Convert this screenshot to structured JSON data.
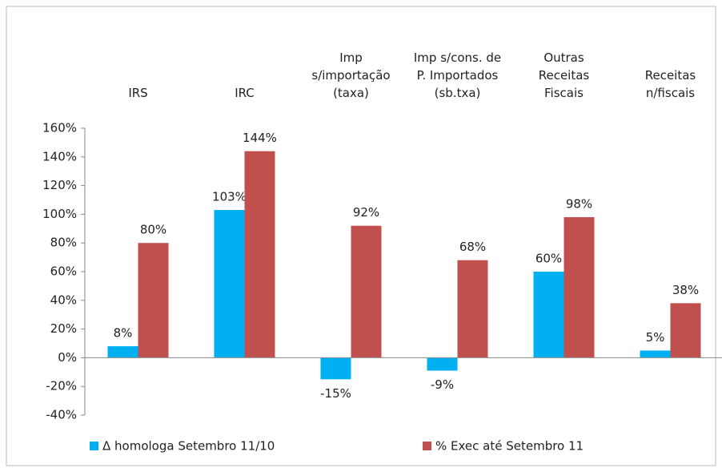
{
  "chart_data": {
    "type": "bar",
    "categories": [
      "IRS",
      "IRC",
      "Imp\ns/importação\n(taxa)",
      "Imp s/cons. de\nP. Importados\n(sb.txa)",
      "Outras\nReceitas\nFiscais",
      "Receitas\nn/fiscais"
    ],
    "series": [
      {
        "name": "Δ homologa Setembro 11/10",
        "color": "#00b0f0",
        "values": [
          8,
          103,
          -15,
          -9,
          60,
          5
        ],
        "value_labels": [
          "8%",
          "103%",
          "-15%",
          "-9%",
          "60%",
          "5%"
        ]
      },
      {
        "name": "% Exec até Setembro 11",
        "color": "#c0504d",
        "values": [
          80,
          144,
          92,
          68,
          98,
          38
        ],
        "value_labels": [
          "80%",
          "144%",
          "92%",
          "68%",
          "98%",
          "38%"
        ]
      }
    ],
    "ylim": [
      -40,
      160
    ],
    "yticks": [
      {
        "value": -40,
        "label": "-40%"
      },
      {
        "value": -20,
        "label": "-20%"
      },
      {
        "value": 0,
        "label": "0%"
      },
      {
        "value": 20,
        "label": "20%"
      },
      {
        "value": 40,
        "label": "40%"
      },
      {
        "value": 60,
        "label": "60%"
      },
      {
        "value": 80,
        "label": "80%"
      },
      {
        "value": 100,
        "label": "100%"
      },
      {
        "value": 120,
        "label": "120%"
      },
      {
        "value": 140,
        "label": "140%"
      },
      {
        "value": 160,
        "label": "160%"
      }
    ],
    "grid": false,
    "legend": "bottom"
  }
}
